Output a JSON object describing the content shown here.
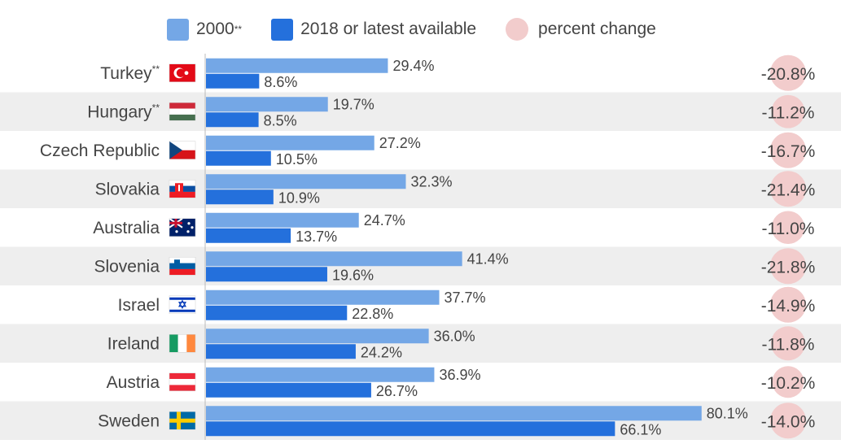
{
  "legend": {
    "s2000": "2000",
    "s2000_note": "**",
    "s2018": "2018 or latest available",
    "change": "percent change"
  },
  "colors": {
    "s2000": "#74a7e6",
    "s2018": "#2470dc",
    "change": "#f2cccc",
    "row_band": "#eeeeee",
    "text": "#444444"
  },
  "chart_data": {
    "type": "bar",
    "orientation": "horizontal",
    "categories": [
      "Turkey",
      "Hungary",
      "Czech Republic",
      "Slovakia",
      "Australia",
      "Slovenia",
      "Israel",
      "Ireland",
      "Austria",
      "Sweden"
    ],
    "category_notes": [
      "**",
      "**",
      "",
      "",
      "",
      "",
      "",
      "",
      "",
      ""
    ],
    "series": [
      {
        "name": "2000**",
        "values": [
          29.4,
          19.7,
          27.2,
          32.3,
          24.7,
          41.4,
          37.7,
          36.0,
          36.9,
          80.1
        ],
        "labels": [
          "29.4%",
          "19.7%",
          "27.2%",
          "32.3%",
          "24.7%",
          "41.4%",
          "37.7%",
          "36.0%",
          "36.9%",
          "80.1%"
        ]
      },
      {
        "name": "2018 or latest available",
        "values": [
          8.6,
          8.5,
          10.5,
          10.9,
          13.7,
          19.6,
          22.8,
          24.2,
          26.7,
          66.1
        ],
        "labels": [
          "8.6%",
          "8.5%",
          "10.5%",
          "10.9%",
          "13.7%",
          "19.6%",
          "22.8%",
          "24.2%",
          "26.7%",
          "66.1%"
        ]
      }
    ],
    "percent_change": {
      "name": "percent change",
      "values": [
        -20.8,
        -11.2,
        -16.7,
        -21.4,
        -11.0,
        -21.8,
        -14.9,
        -11.8,
        -10.2,
        -14.0
      ],
      "labels": [
        "-20.8%",
        "-11.2%",
        "-16.7%",
        "-21.4%",
        "-11.0%",
        "-21.8%",
        "-14.9%",
        "-11.8%",
        "-10.2%",
        "-14.0%"
      ]
    },
    "xlim": [
      0,
      100
    ],
    "legend_position": "top",
    "grid": false
  }
}
